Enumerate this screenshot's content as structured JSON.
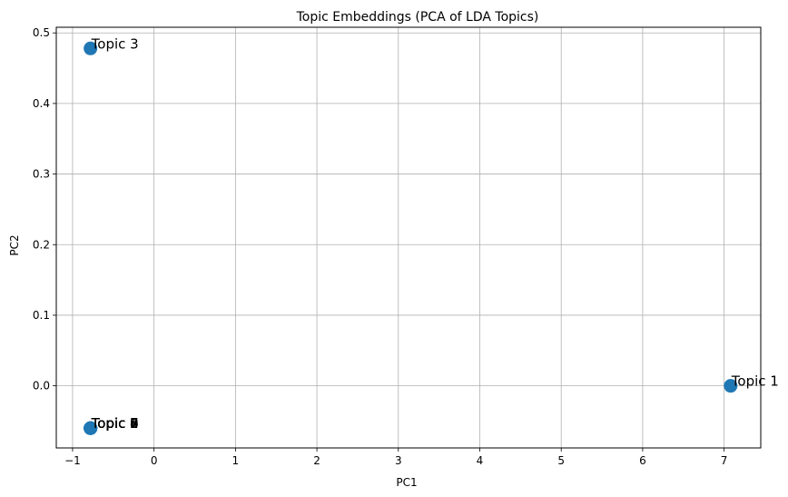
{
  "chart_data": {
    "type": "scatter",
    "title": "Topic Embeddings (PCA of LDA Topics)",
    "xlabel": "PC1",
    "ylabel": "PC2",
    "xlim": [
      -1.2,
      7.45
    ],
    "ylim": [
      -0.088,
      0.508
    ],
    "xticks": [
      -1,
      0,
      1,
      2,
      3,
      4,
      5,
      6,
      7
    ],
    "yticks": [
      0.0,
      0.1,
      0.2,
      0.3,
      0.4,
      0.5
    ],
    "xtick_labels": [
      "−1",
      "0",
      "1",
      "2",
      "3",
      "4",
      "5",
      "6",
      "7"
    ],
    "ytick_labels": [
      "0.0",
      "0.1",
      "0.2",
      "0.3",
      "0.4",
      "0.5"
    ],
    "grid": true,
    "marker_color": "#1f77b4",
    "points": [
      {
        "label": "Topic 3",
        "x": -0.78,
        "y": 0.478
      },
      {
        "label": "Topic 1",
        "x": 7.08,
        "y": 0.0
      },
      {
        "label": "Topic 0",
        "x": -0.78,
        "y": -0.06
      },
      {
        "label": "Topic 2",
        "x": -0.78,
        "y": -0.06
      },
      {
        "label": "Topic 4",
        "x": -0.78,
        "y": -0.06
      },
      {
        "label": "Topic 5",
        "x": -0.78,
        "y": -0.06
      },
      {
        "label": "Topic 6",
        "x": -0.78,
        "y": -0.06
      },
      {
        "label": "Topic 7",
        "x": -0.78,
        "y": -0.06
      },
      {
        "label": "Topic 8",
        "x": -0.78,
        "y": -0.06
      },
      {
        "label": "Topic 9",
        "x": -0.78,
        "y": -0.06
      }
    ]
  }
}
